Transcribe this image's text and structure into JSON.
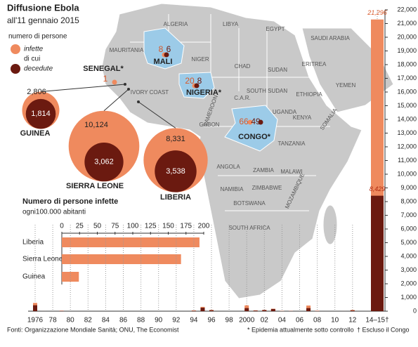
{
  "header": {
    "title": "Diffusione Ebola",
    "subtitle": "all'11 gennaio 2015"
  },
  "legend": {
    "heading": "numero di persone",
    "infected": "infette",
    "connector": "di cui",
    "deaths": "decedute",
    "colors": {
      "infected": "#ef8a5e",
      "deaths": "#6b1a10"
    }
  },
  "map": {
    "countries": [
      "ALGERIA",
      "LIBYA",
      "EGYPT",
      "SAUDI ARABIA",
      "MAURITANIA",
      "NIGER",
      "CHAD",
      "SUDAN",
      "ERITREA",
      "YEMEN",
      "SOUTH SUDAN",
      "ETHIOPIA",
      "C.A.R.",
      "CAMEROON",
      "GABON",
      "UGANDA",
      "KENYA",
      "SOMALIA",
      "TANZANIA",
      "IVORY COAST",
      "ANGOLA",
      "ZAMBIA",
      "MALAWI",
      "NAMIBIA",
      "ZIMBABWE",
      "MOZAMBIQUE",
      "BOTSWANA",
      "SOUTH AFRICA"
    ],
    "outbreaks": [
      {
        "name": "GUINEA",
        "values": [
          2806,
          1814
        ],
        "value_labels": [
          "2,806",
          "1,814"
        ]
      },
      {
        "name": "SIERRA LEONE",
        "values": [
          10124,
          3062
        ],
        "value_labels": [
          "10,124",
          "3,062"
        ]
      },
      {
        "name": "LIBERIA",
        "values": [
          8331,
          3538
        ],
        "value_labels": [
          "8,331",
          "3,538"
        ]
      },
      {
        "name": "SENEGAL*",
        "values": [
          1
        ]
      },
      {
        "name": "MALI",
        "values": [
          8,
          6
        ]
      },
      {
        "name": "NIGERIA*",
        "values": [
          20,
          8
        ]
      },
      {
        "name": "CONGO*",
        "values": [
          66,
          49
        ]
      }
    ]
  },
  "chart_data": [
    {
      "type": "hbar",
      "title": "Numero di persone infette",
      "subtitle": "ogni100.000 abitanti",
      "categories": [
        "Liberia",
        "Sierra Leone",
        "Guinea"
      ],
      "values": [
        194,
        168,
        24
      ],
      "color": "#ef8a5e",
      "xlim": [
        0,
        200
      ],
      "xticks": [
        0,
        25,
        50,
        75,
        100,
        125,
        150,
        175,
        200
      ]
    },
    {
      "type": "bar",
      "categories": [
        "1976",
        null,
        "78",
        null,
        "80",
        null,
        "82",
        null,
        "84",
        null,
        "86",
        null,
        "88",
        null,
        "90",
        null,
        "92",
        null,
        "94",
        null,
        "96",
        null,
        "98",
        null,
        "2000",
        null,
        "02",
        null,
        "04",
        null,
        "06",
        null,
        "08",
        null,
        "10",
        null,
        "12",
        null,
        "14–15†"
      ],
      "series": [
        {
          "color": "#ef8a5e",
          "values": [
            602,
            1,
            0,
            34,
            0,
            0,
            0,
            0,
            0,
            0,
            0,
            0,
            0,
            0,
            0,
            0,
            0,
            0,
            52,
            315,
            91,
            0,
            0,
            0,
            425,
            59,
            92,
            178,
            17,
            12,
            0,
            413,
            32,
            0,
            0,
            1,
            88,
            0,
            21296
          ],
          "value_labels": [
            null,
            null,
            null,
            null,
            null,
            null,
            null,
            null,
            null,
            null,
            null,
            null,
            null,
            null,
            null,
            null,
            null,
            null,
            null,
            null,
            null,
            null,
            null,
            null,
            null,
            null,
            null,
            null,
            null,
            null,
            null,
            null,
            null,
            null,
            null,
            null,
            null,
            null,
            "21,296"
          ]
        },
        {
          "color": "#6b1a10",
          "values": [
            431,
            1,
            0,
            22,
            0,
            0,
            0,
            0,
            0,
            0,
            0,
            0,
            0,
            0,
            0,
            0,
            0,
            0,
            31,
            250,
            66,
            0,
            0,
            0,
            224,
            44,
            79,
            157,
            7,
            10,
            0,
            224,
            15,
            0,
            0,
            1,
            52,
            0,
            8429
          ],
          "value_labels": [
            null,
            null,
            null,
            null,
            null,
            null,
            null,
            null,
            null,
            null,
            null,
            null,
            null,
            null,
            null,
            null,
            null,
            null,
            null,
            null,
            null,
            null,
            null,
            null,
            null,
            null,
            null,
            null,
            null,
            null,
            null,
            null,
            null,
            null,
            null,
            null,
            null,
            null,
            "8,429"
          ]
        }
      ],
      "ylim": [
        0,
        22000
      ],
      "yticks": [
        0,
        {
          "value": 1000,
          "label": "1,000"
        },
        {
          "value": 2000,
          "label": "2,000"
        },
        {
          "value": 3000,
          "label": "3,000"
        },
        {
          "value": 4000,
          "label": "4,000"
        },
        {
          "value": 5000,
          "label": "5,000"
        },
        {
          "value": 6000,
          "label": "6,000"
        },
        {
          "value": 7000,
          "label": "7,000"
        },
        {
          "value": 8000,
          "label": "8,000"
        },
        {
          "value": 9000,
          "label": "9,000"
        },
        {
          "value": 10000,
          "label": "10,000"
        },
        {
          "value": 11000,
          "label": "11,000"
        },
        {
          "value": 12000,
          "label": "12,000"
        },
        {
          "value": 13000,
          "label": "13,000"
        },
        {
          "value": 14000,
          "label": "14,000"
        },
        {
          "value": 15000,
          "label": "15,000"
        },
        {
          "value": 16000,
          "label": "16,000"
        },
        {
          "value": 17000,
          "label": "17,000"
        },
        {
          "value": 18000,
          "label": "18,000"
        },
        {
          "value": 19000,
          "label": "19,000"
        },
        {
          "value": 20000,
          "label": "20,000"
        },
        {
          "value": 21000,
          "label": "21,000"
        },
        {
          "value": 22000,
          "label": "22,000"
        }
      ]
    }
  ],
  "footer": {
    "source": "Fonti: Organizzazione Mondiale Sanità; ONU, The Economist",
    "notes": [
      "* Epidemia attualmente sotto controllo",
      "† Escluso il Congo"
    ]
  }
}
